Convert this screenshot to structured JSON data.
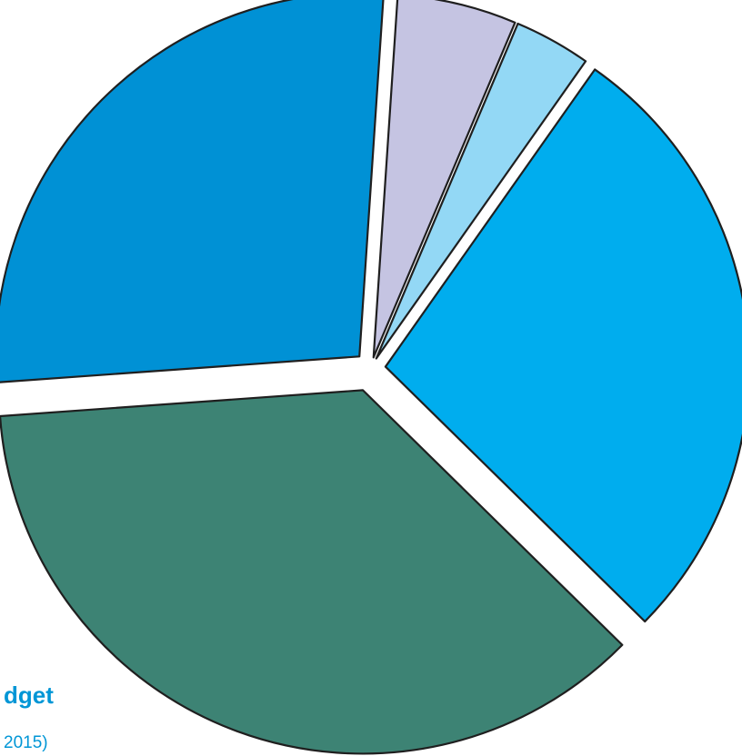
{
  "chart_data": {
    "type": "pie",
    "title": "dget",
    "subtitle": "2015)",
    "exploded": true,
    "slices": [
      {
        "value": 36.5,
        "color": "#3d8374"
      },
      {
        "value": 27.2,
        "color": "#0091d5"
      },
      {
        "value": 5.3,
        "color": "#c5c4e2"
      },
      {
        "value": 3.4,
        "color": "#93d8f5"
      },
      {
        "value": 27.6,
        "color": "#00adee"
      }
    ]
  }
}
